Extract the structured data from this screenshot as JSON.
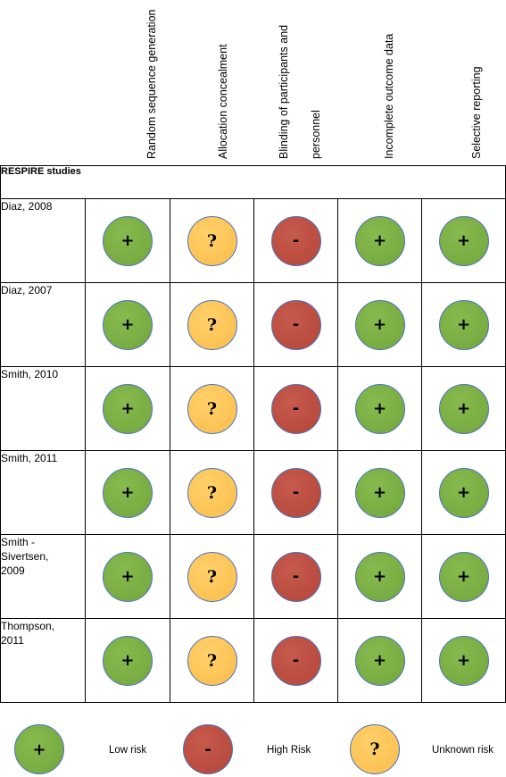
{
  "columns": [
    {
      "label": "Random sequence generation"
    },
    {
      "label": "Allocation concealment"
    },
    {
      "label": "Blinding of participants and",
      "label2": "personnel"
    },
    {
      "label": "Incomplete outcome data"
    },
    {
      "label": "Selective reporting"
    }
  ],
  "group_label": "RESPIRE studies",
  "studies": [
    {
      "name": "Diaz, 2008",
      "ratings": [
        "+",
        "?",
        "-",
        "+",
        "+"
      ]
    },
    {
      "name": "Diaz, 2007",
      "ratings": [
        "+",
        "?",
        "-",
        "+",
        "+"
      ]
    },
    {
      "name": "Smith, 2010",
      "ratings": [
        "+",
        "?",
        "-",
        "+",
        "+"
      ]
    },
    {
      "name": "Smith, 2011",
      "ratings": [
        "+",
        "?",
        "-",
        "+",
        "+"
      ]
    },
    {
      "name": "Smith -\nSivertsen,\n2009",
      "ratings": [
        "+",
        "?",
        "-",
        "+",
        "+"
      ]
    },
    {
      "name": "Thompson,\n2011",
      "ratings": [
        "+",
        "?",
        "-",
        "+",
        "+"
      ]
    }
  ],
  "legend": [
    {
      "symbol": "+",
      "label": "Low risk",
      "level": "low"
    },
    {
      "symbol": "-",
      "label": "High Risk",
      "level": "high"
    },
    {
      "symbol": "?",
      "label": "Unknown risk",
      "level": "unknown"
    }
  ],
  "colors": {
    "low": "#7aae44",
    "high": "#bd4e41",
    "unknown": "#fdc55a",
    "outline": "#4a74c0"
  }
}
